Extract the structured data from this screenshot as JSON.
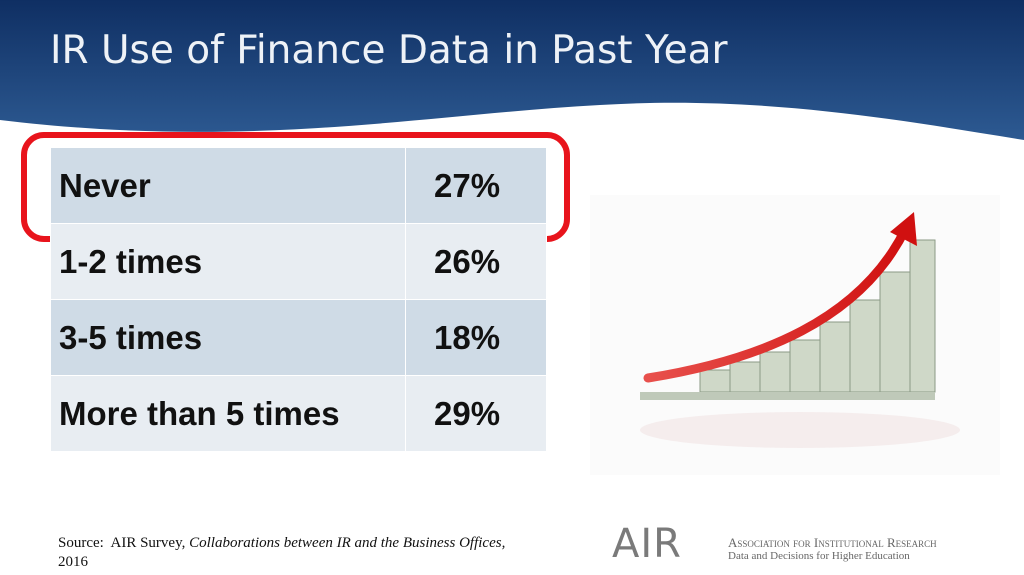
{
  "header": {
    "title": "IR Use of Finance Data in Past Year"
  },
  "table": {
    "rows": [
      [
        "Never",
        "27%"
      ],
      [
        "1-2 times",
        "26%"
      ],
      [
        "3-5 times",
        "18%"
      ],
      [
        "More than 5 times",
        "29%"
      ]
    ]
  },
  "source": {
    "prefix": "Source:  AIR Survey, ",
    "title": "Collaborations between IR and the Business Offices,",
    "year": "2016"
  },
  "logo": {
    "mark": "AIR",
    "name": "Association for Institutional Research",
    "tagline": "Data and Decisions for Higher Education"
  }
}
